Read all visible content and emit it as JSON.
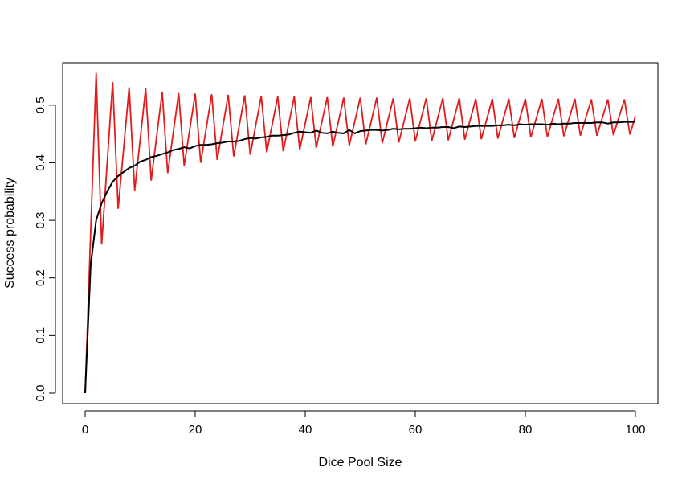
{
  "chart_data": {
    "type": "line",
    "title": "",
    "xlabel": "Dice Pool Size",
    "ylabel": "Success probability",
    "xlim": [
      0,
      100
    ],
    "ylim": [
      0,
      0.55
    ],
    "x_ticks": [
      0,
      20,
      40,
      60,
      80,
      100
    ],
    "x_tick_labels": [
      "0",
      "20",
      "40",
      "60",
      "80",
      "100"
    ],
    "y_ticks": [
      0.0,
      0.1,
      0.2,
      0.3,
      0.4,
      0.5
    ],
    "y_tick_labels": [
      "0.0",
      "0.1",
      "0.2",
      "0.3",
      "0.4",
      "0.5"
    ],
    "grid": false,
    "legend": "none",
    "colors": {
      "background": "#ffffff",
      "axis": "#000000",
      "black_series": "#000000",
      "red_series": "#e31a1c"
    },
    "series": [
      {
        "color": "#000000",
        "x": [
          0,
          1,
          2,
          3,
          4,
          5,
          6,
          7,
          8,
          9,
          10,
          11,
          12,
          13,
          14,
          15,
          16,
          17,
          18,
          19,
          20,
          21,
          22,
          23,
          24,
          25,
          26,
          27,
          28,
          29,
          30,
          31,
          32,
          33,
          34,
          35,
          36,
          37,
          38,
          39,
          40,
          41,
          42,
          43,
          44,
          45,
          46,
          47,
          48,
          49,
          50,
          51,
          52,
          53,
          54,
          55,
          56,
          57,
          58,
          59,
          60,
          61,
          62,
          63,
          64,
          65,
          66,
          67,
          68,
          69,
          70,
          71,
          72,
          73,
          74,
          75,
          76,
          77,
          78,
          79,
          80,
          81,
          82,
          83,
          84,
          85,
          86,
          87,
          88,
          89,
          90,
          91,
          92,
          93,
          94,
          95,
          96,
          97,
          98,
          99,
          100
        ],
        "values": [
          0,
          0.222,
          0.3,
          0.33,
          0.35,
          0.367,
          0.377,
          0.384,
          0.391,
          0.395,
          0.402,
          0.405,
          0.41,
          0.412,
          0.415,
          0.418,
          0.422,
          0.424,
          0.427,
          0.425,
          0.429,
          0.431,
          0.431,
          0.432,
          0.434,
          0.435,
          0.437,
          0.437,
          0.438,
          0.441,
          0.443,
          0.442,
          0.444,
          0.445,
          0.447,
          0.447,
          0.448,
          0.449,
          0.452,
          0.454,
          0.453,
          0.452,
          0.456,
          0.452,
          0.451,
          0.454,
          0.452,
          0.451,
          0.457,
          0.451,
          0.455,
          0.456,
          0.457,
          0.457,
          0.456,
          0.457,
          0.459,
          0.458,
          0.459,
          0.459,
          0.46,
          0.461,
          0.46,
          0.461,
          0.461,
          0.462,
          0.462,
          0.46,
          0.463,
          0.462,
          0.463,
          0.464,
          0.464,
          0.464,
          0.464,
          0.465,
          0.465,
          0.466,
          0.465,
          0.467,
          0.466,
          0.467,
          0.467,
          0.467,
          0.466,
          0.468,
          0.467,
          0.468,
          0.468,
          0.469,
          0.469,
          0.469,
          0.469,
          0.47,
          0.47,
          0.468,
          0.47,
          0.47,
          0.471,
          0.471,
          0.471
        ]
      },
      {
        "color": "#e31a1c",
        "x": [
          0,
          2,
          3,
          5,
          6,
          8,
          9,
          11,
          12,
          14,
          15,
          17,
          18,
          20,
          21,
          23,
          24,
          26,
          27,
          29,
          30,
          32,
          33,
          35,
          36,
          38,
          39,
          41,
          42,
          44,
          45,
          47,
          48,
          50,
          51,
          53,
          54,
          56,
          57,
          59,
          60,
          62,
          63,
          65,
          66,
          68,
          69,
          71,
          72,
          74,
          75,
          77,
          78,
          80,
          81,
          83,
          84,
          86,
          87,
          89,
          90,
          92,
          93,
          95,
          96,
          98,
          99,
          100
        ],
        "values": [
          0,
          0.556,
          0.258,
          0.54,
          0.32,
          0.531,
          0.352,
          0.529,
          0.369,
          0.523,
          0.382,
          0.521,
          0.395,
          0.52,
          0.4,
          0.519,
          0.405,
          0.518,
          0.411,
          0.517,
          0.414,
          0.516,
          0.418,
          0.515,
          0.42,
          0.515,
          0.423,
          0.514,
          0.426,
          0.514,
          0.428,
          0.513,
          0.43,
          0.513,
          0.432,
          0.513,
          0.434,
          0.512,
          0.435,
          0.512,
          0.437,
          0.512,
          0.438,
          0.512,
          0.439,
          0.512,
          0.44,
          0.511,
          0.441,
          0.511,
          0.442,
          0.511,
          0.443,
          0.511,
          0.444,
          0.511,
          0.445,
          0.511,
          0.446,
          0.511,
          0.447,
          0.51,
          0.447,
          0.51,
          0.448,
          0.51,
          0.449,
          0.481
        ]
      }
    ]
  }
}
